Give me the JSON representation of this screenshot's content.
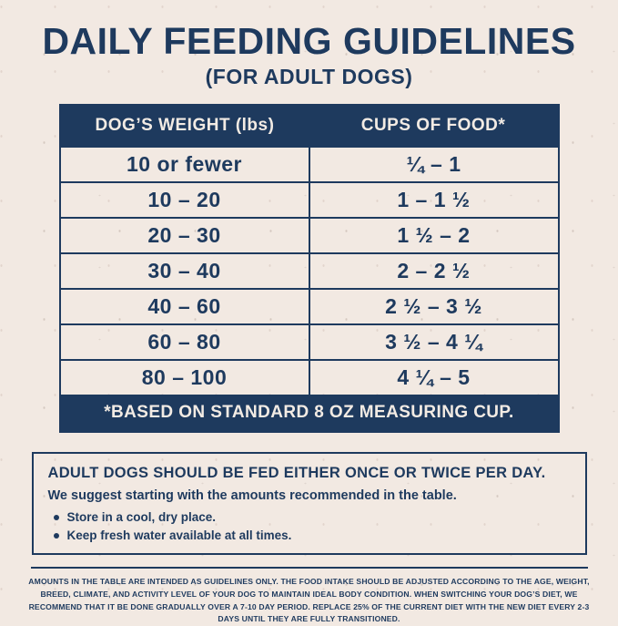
{
  "header": {
    "title": "DAILY FEEDING GUIDELINES",
    "subtitle": "(FOR ADULT DOGS)"
  },
  "table": {
    "headers": [
      "DOG’S WEIGHT (lbs)",
      "CUPS OF FOOD*"
    ],
    "rows": [
      {
        "weight": "10 or fewer",
        "cups": "¼ – 1"
      },
      {
        "weight": "10 – 20",
        "cups": "1 – 1 ½"
      },
      {
        "weight": "20 – 30",
        "cups": "1 ½ – 2"
      },
      {
        "weight": "30 – 40",
        "cups": "2 – 2 ½"
      },
      {
        "weight": "40 – 60",
        "cups": "2 ½ – 3 ½"
      },
      {
        "weight": "60 – 80",
        "cups": "3 ½ – 4 ¼"
      },
      {
        "weight": "80 – 100",
        "cups": "4 ¼ – 5"
      }
    ],
    "footnote": "*BASED ON STANDARD 8 OZ MEASURING CUP."
  },
  "info_box": {
    "heading": "ADULT DOGS SHOULD BE FED EITHER ONCE OR TWICE PER DAY.",
    "subheading": "We suggest starting with the amounts recommended in the table.",
    "bullets": [
      "Store in a cool, dry place.",
      "Keep fresh water available at all times."
    ]
  },
  "fine_print": "AMOUNTS IN THE TABLE ARE INTENDED AS GUIDELINES ONLY. THE FOOD INTAKE SHOULD BE ADJUSTED ACCORDING TO THE AGE, WEIGHT, BREED, CLIMATE, AND ACTIVITY LEVEL OF YOUR DOG TO MAINTAIN IDEAL BODY CONDITION. WHEN SWITCHING YOUR DOG’S DIET, WE RECOMMEND THAT IT BE DONE GRADUALLY OVER A 7-10 DAY PERIOD. REPLACE 25% OF THE CURRENT DIET WITH THE NEW DIET EVERY 2-3 DAYS UNTIL THEY ARE FULLY TRANSITIONED.",
  "colors": {
    "navy": "#1e3a5e",
    "background": "#f2e9e2",
    "light_text": "#f2ebe4"
  }
}
